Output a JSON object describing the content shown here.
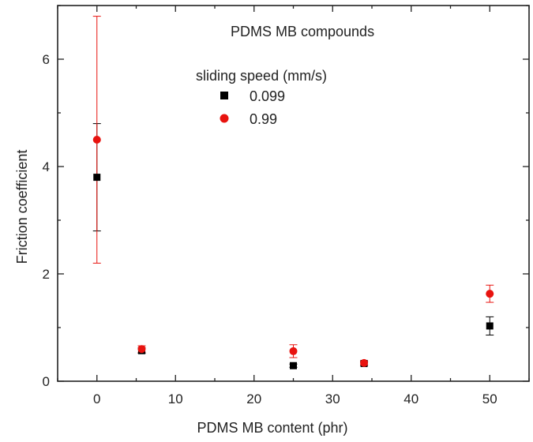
{
  "chart_data": {
    "type": "scatter",
    "title": "PDMS MB compounds",
    "xlabel": "PDMS MB content (phr)",
    "ylabel": "Friction coefficient",
    "xlim": [
      -5,
      55
    ],
    "ylim": [
      0,
      7
    ],
    "xticks": [
      0,
      10,
      20,
      30,
      40,
      50
    ],
    "yticks": [
      0,
      2,
      4,
      6
    ],
    "grid": false,
    "legend_title": "sliding speed (mm/s)",
    "legend_position": "top-center",
    "series": [
      {
        "name": "0.099",
        "marker": "square",
        "color": "#000000",
        "points": [
          {
            "x": 0,
            "y": 3.8,
            "err": 1.0
          },
          {
            "x": 5.7,
            "y": 0.57,
            "err": 0.05
          },
          {
            "x": 25,
            "y": 0.29,
            "err": 0.03
          },
          {
            "x": 34,
            "y": 0.33,
            "err": 0.03
          },
          {
            "x": 50,
            "y": 1.03,
            "err": 0.17
          }
        ]
      },
      {
        "name": "0.99",
        "marker": "circle",
        "color": "#e8130f",
        "points": [
          {
            "x": 0,
            "y": 4.5,
            "err": 2.3
          },
          {
            "x": 5.7,
            "y": 0.6,
            "err": 0.06
          },
          {
            "x": 25,
            "y": 0.56,
            "err": 0.12
          },
          {
            "x": 34,
            "y": 0.34,
            "err": 0.04
          },
          {
            "x": 50,
            "y": 1.63,
            "err": 0.16
          }
        ]
      }
    ]
  }
}
